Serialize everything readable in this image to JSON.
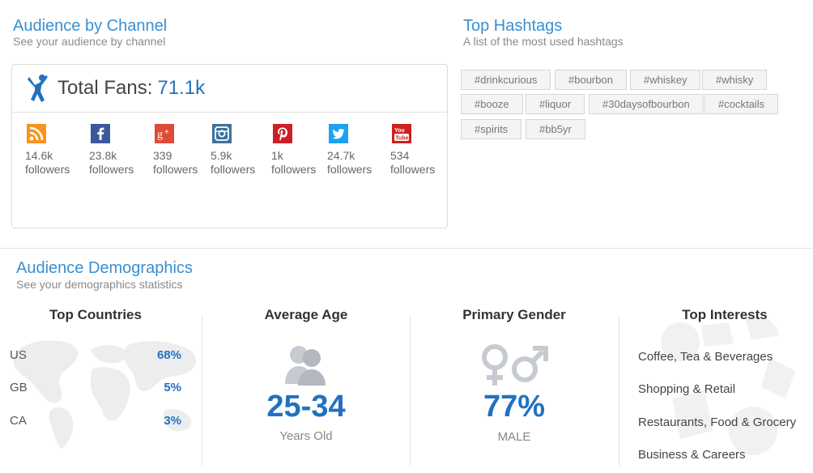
{
  "channel_section": {
    "title": "Audience by Channel",
    "subtitle": "See your audience by channel",
    "total_fans_label": "Total Fans:",
    "total_fans_value": "71.1k",
    "channels": [
      {
        "icon": "rss-icon",
        "count": "14.6k",
        "unit": "followers",
        "color": "#f7941d"
      },
      {
        "icon": "facebook-icon",
        "count": "23.8k",
        "unit": "followers",
        "color": "#3b5998"
      },
      {
        "icon": "google-plus-icon",
        "count": "339",
        "unit": "followers",
        "color": "#dd4b39"
      },
      {
        "icon": "instagram-icon",
        "count": "5.9k",
        "unit": "followers",
        "color": "#3f729b"
      },
      {
        "icon": "pinterest-icon",
        "count": "1k",
        "unit": "followers",
        "color": "#cb2027"
      },
      {
        "icon": "twitter-icon",
        "count": "24.7k",
        "unit": "followers",
        "color": "#1da1f2"
      },
      {
        "icon": "youtube-icon",
        "count": "534",
        "unit": "followers",
        "color": "#cd201f"
      }
    ]
  },
  "hashtag_section": {
    "title": "Top Hashtags",
    "subtitle": "A list of the most used hashtags",
    "tags": [
      "#drinkcurious",
      "#bourbon",
      "#whiskey",
      "#whisky",
      "#booze",
      "#liquor",
      "#30daysofbourbon",
      "#cocktails",
      "#spirits",
      "#bb5yr"
    ]
  },
  "demographics_section": {
    "title": "Audience Demographics",
    "subtitle": "See your demographics statistics",
    "countries": {
      "title": "Top Countries",
      "rows": [
        {
          "code": "US",
          "pct": "68%"
        },
        {
          "code": "GB",
          "pct": "5%"
        },
        {
          "code": "CA",
          "pct": "3%"
        }
      ]
    },
    "age": {
      "title": "Average Age",
      "value": "25-34",
      "unit": "Years Old"
    },
    "gender": {
      "title": "Primary Gender",
      "value": "77%",
      "unit": "MALE"
    },
    "interests": {
      "title": "Top Interests",
      "items": [
        "Coffee, Tea & Beverages",
        "Shopping & Retail",
        "Restaurants, Food & Grocery",
        "Business & Careers"
      ]
    }
  },
  "colors": {
    "accent": "#2271c0",
    "title_blue": "#3a8fd0"
  }
}
